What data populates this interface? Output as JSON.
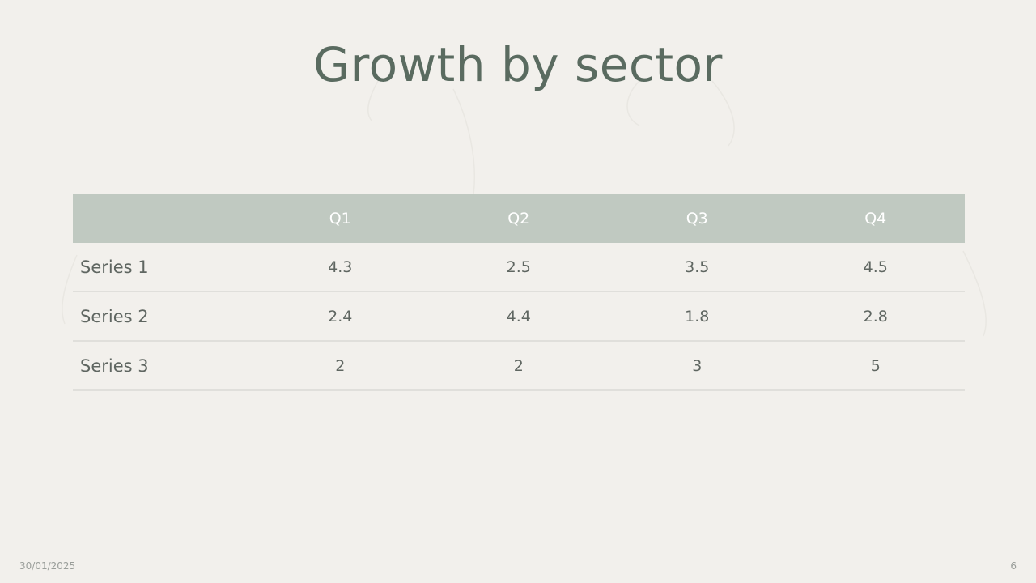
{
  "slide": {
    "title": "Growth by sector",
    "date": "30/01/2025",
    "page_number": "6"
  },
  "table": {
    "columns": [
      "",
      "Q1",
      "Q2",
      "Q3",
      "Q4"
    ],
    "rows": [
      {
        "label": "Series 1",
        "values": [
          "4.3",
          "2.5",
          "3.5",
          "4.5"
        ]
      },
      {
        "label": "Series 2",
        "values": [
          "2.4",
          "4.4",
          "1.8",
          "2.8"
        ]
      },
      {
        "label": "Series 3",
        "values": [
          "2",
          "2",
          "3",
          "5"
        ]
      }
    ]
  },
  "colors": {
    "background": "#f2f0ec",
    "title": "#5a6b60",
    "header_fill": "#c0c9c1",
    "header_text": "#ffffff",
    "cell_text": "#5f6661",
    "row_divider": "#e0dfdb"
  }
}
